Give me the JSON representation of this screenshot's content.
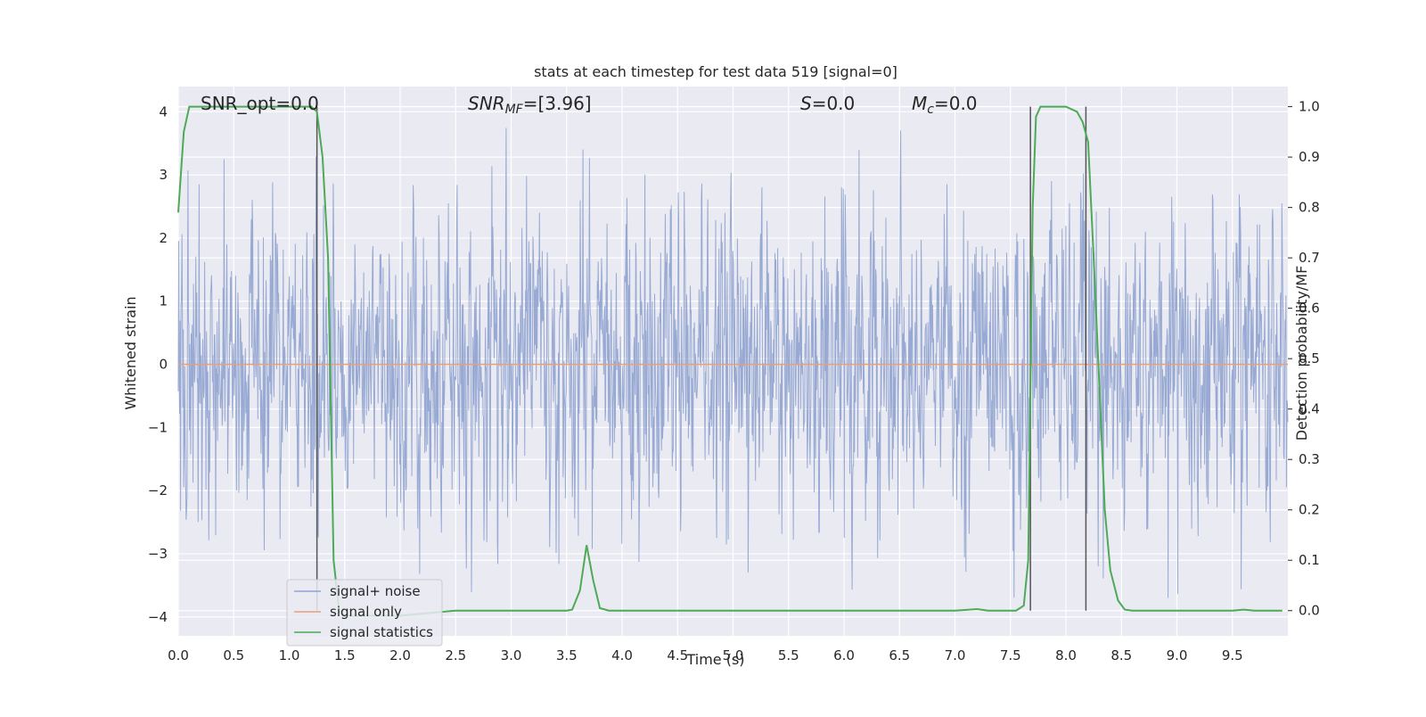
{
  "chart_data": {
    "type": "line",
    "title": "stats at each timestep for test data 519 [signal=0]",
    "xlabel": "Time (s)",
    "ylabel_left": "Whitened strain",
    "ylabel_right": "Detection probability/MF",
    "xlim": [
      0,
      10
    ],
    "ylim_left": [
      -4.3,
      4.4
    ],
    "ylim_right": [
      -0.05,
      1.04
    ],
    "x_ticks": [
      0.0,
      0.5,
      1.0,
      1.5,
      2.0,
      2.5,
      3.0,
      3.5,
      4.0,
      4.5,
      5.0,
      5.5,
      6.0,
      6.5,
      7.0,
      7.5,
      8.0,
      8.5,
      9.0,
      9.5
    ],
    "x_tick_labels": [
      "0.0",
      "0.5",
      "1.0",
      "1.5",
      "2.0",
      "2.5",
      "3.0",
      "3.5",
      "4.0",
      "4.5",
      "5.0",
      "5.5",
      "6.0",
      "6.5",
      "7.0",
      "7.5",
      "8.0",
      "8.5",
      "9.0",
      "9.5"
    ],
    "y_left_ticks": [
      -4,
      -3,
      -2,
      -1,
      0,
      1,
      2,
      3,
      4
    ],
    "y_left_tick_labels": [
      "−4",
      "−3",
      "−2",
      "−1",
      "0",
      "1",
      "2",
      "3",
      "4"
    ],
    "y_right_ticks": [
      0.0,
      0.1,
      0.2,
      0.3,
      0.4,
      0.5,
      0.6,
      0.7,
      0.8,
      0.9,
      1.0
    ],
    "y_right_tick_labels": [
      "0.0",
      "0.1",
      "0.2",
      "0.3",
      "0.4",
      "0.5",
      "0.6",
      "0.7",
      "0.8",
      "0.9",
      "1.0"
    ],
    "grid": true,
    "legend_position": "lower-left",
    "annotations": {
      "snr_opt": "SNR_opt=0.0",
      "snr_mf_main": "SNR",
      "snr_mf_sub": "MF",
      "snr_mf_value": "=[3.96]",
      "s_var": "S",
      "s_value": "=0.0",
      "mc_var": "M",
      "mc_sub": "c",
      "mc_value": "=0.0"
    },
    "series": [
      {
        "name": "signal+ noise",
        "axis": "left",
        "color": "#8fa3cf",
        "note": "dense whitened noise trace, roughly between -3.5 and 4.0"
      },
      {
        "name": "signal only",
        "axis": "left",
        "color": "#e8a07c",
        "x": [
          0,
          10
        ],
        "y": [
          0,
          0
        ]
      },
      {
        "name": "signal statistics",
        "axis": "right",
        "color": "#4daa57",
        "x": [
          0.0,
          0.05,
          0.1,
          0.2,
          0.5,
          1.0,
          1.2,
          1.25,
          1.3,
          1.35,
          1.4,
          1.45,
          1.5,
          2.0,
          2.5,
          3.0,
          3.5,
          3.55,
          3.62,
          3.68,
          3.74,
          3.8,
          3.88,
          4.0,
          5.0,
          6.0,
          7.0,
          7.2,
          7.3,
          7.55,
          7.62,
          7.66,
          7.7,
          7.73,
          7.77,
          7.85,
          8.0,
          8.1,
          8.15,
          8.2,
          8.25,
          8.3,
          8.35,
          8.4,
          8.47,
          8.53,
          8.6,
          9.0,
          9.5,
          9.6,
          9.7,
          9.95
        ],
        "y": [
          0.79,
          0.95,
          1.0,
          1.0,
          1.0,
          1.0,
          1.0,
          0.99,
          0.9,
          0.7,
          0.1,
          0.0,
          -0.01,
          -0.01,
          0.0,
          0.0,
          0.0,
          0.002,
          0.04,
          0.13,
          0.06,
          0.005,
          0.0,
          0.0,
          0.0,
          0.0,
          0.0,
          0.003,
          0.0,
          0.0,
          0.01,
          0.1,
          0.8,
          0.98,
          1.0,
          1.0,
          1.0,
          0.99,
          0.97,
          0.93,
          0.7,
          0.45,
          0.2,
          0.08,
          0.02,
          0.002,
          0.0,
          0.0,
          0.0,
          0.002,
          0.0,
          0.0
        ]
      }
    ],
    "vertical_markers": [
      {
        "x": 1.25,
        "y_from": -3.9,
        "y_to": 1.0
      },
      {
        "x": 7.68,
        "y_from": 0.0,
        "y_to": 1.0
      },
      {
        "x": 8.18,
        "y_from": 0.0,
        "y_to": 1.0
      }
    ]
  }
}
